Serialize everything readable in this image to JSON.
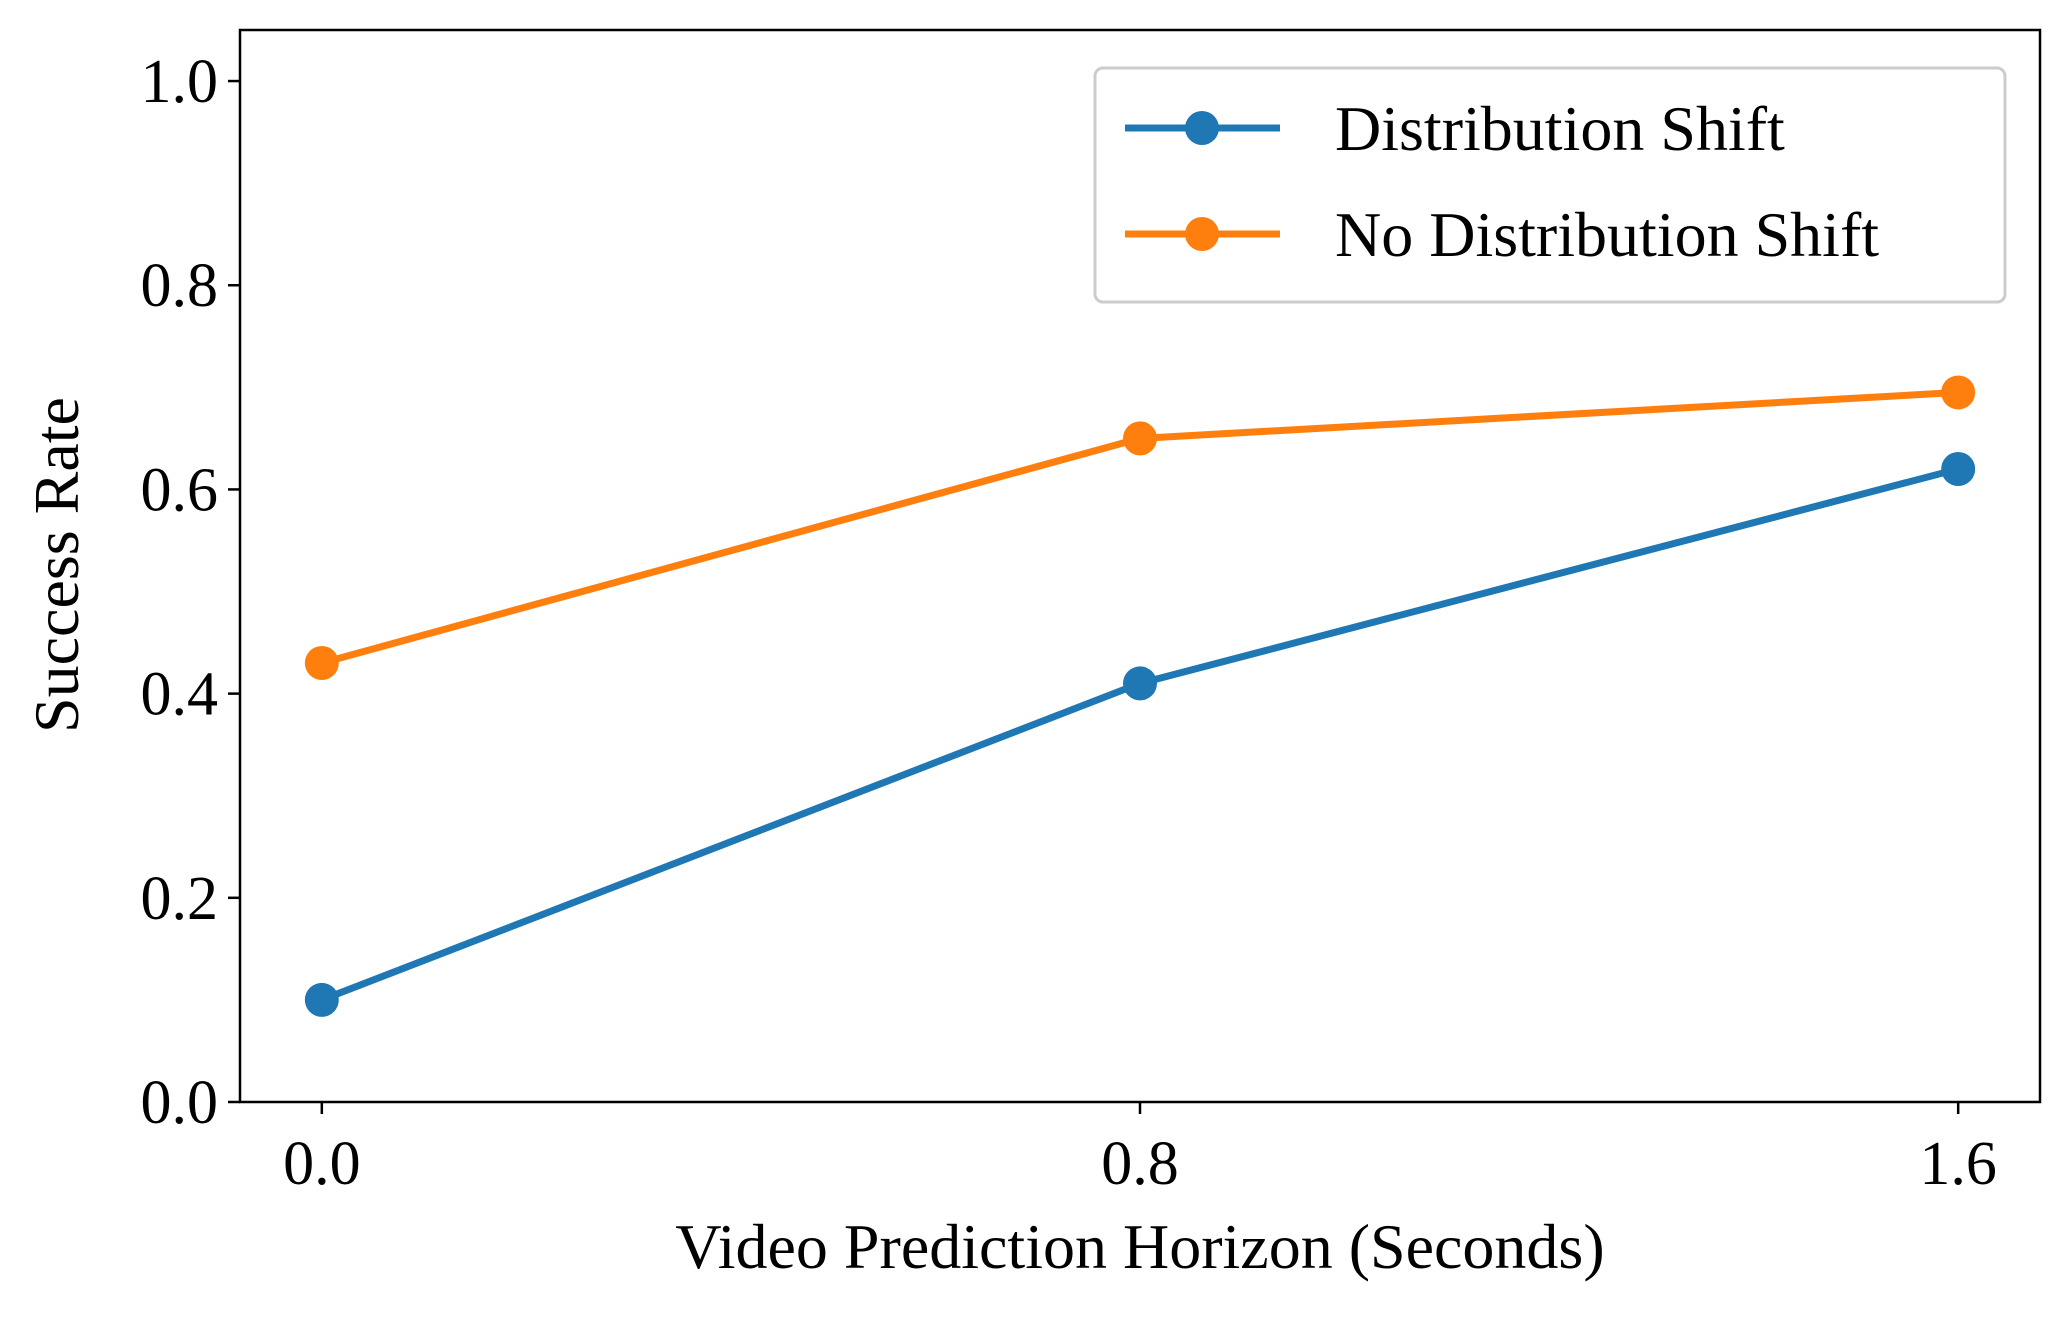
{
  "chart_data": {
    "type": "line",
    "title": "",
    "xlabel": "Video Prediction Horizon (Seconds)",
    "ylabel": "Success Rate",
    "x": [
      0.0,
      0.8,
      1.6
    ],
    "xticks": [
      "0.0",
      "0.8",
      "1.6"
    ],
    "yticks": [
      "0.0",
      "0.2",
      "0.4",
      "0.6",
      "0.8",
      "1.0"
    ],
    "xlim": [
      -0.08,
      1.68
    ],
    "ylim": [
      0.0,
      1.05
    ],
    "grid": false,
    "legend_position": "top-right",
    "series": [
      {
        "name": "Distribution Shift",
        "values": [
          0.1,
          0.41,
          0.62
        ],
        "color": "#1f77b4"
      },
      {
        "name": "No Distribution Shift",
        "values": [
          0.43,
          0.65,
          0.695
        ],
        "color": "#ff7f0e"
      }
    ]
  }
}
